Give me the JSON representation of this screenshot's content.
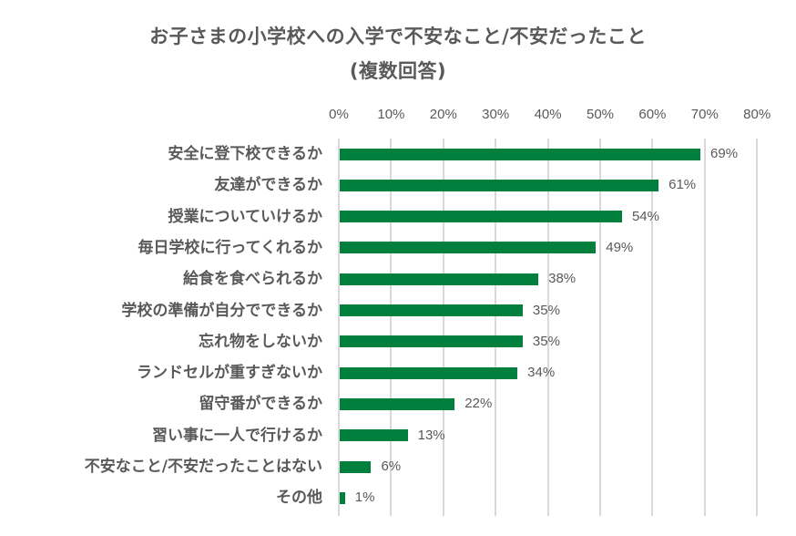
{
  "chart_data": {
    "type": "bar",
    "orientation": "horizontal",
    "title": "お子さまの小学校への入学で不安なこと/不安だったこと",
    "subtitle": "(複数回答)",
    "xlabel": "",
    "ylabel": "",
    "xlim": [
      0,
      80
    ],
    "x_ticks": [
      "0%",
      "10%",
      "20%",
      "30%",
      "40%",
      "50%",
      "60%",
      "70%",
      "80%"
    ],
    "x_axis_position": "top",
    "grid": true,
    "legend": null,
    "bar_color": "#007f3d",
    "categories": [
      "安全に登下校できるか",
      "友達ができるか",
      "授業についていけるか",
      "毎日学校に行ってくれるか",
      "給食を食べられるか",
      "学校の準備が自分でできるか",
      "忘れ物をしないか",
      "ランドセルが重すぎないか",
      "留守番ができるか",
      "習い事に一人で行けるか",
      "不安なこと/不安だったことはない",
      "その他"
    ],
    "values": [
      69,
      61,
      54,
      49,
      38,
      35,
      35,
      34,
      22,
      13,
      6,
      1
    ],
    "value_labels": [
      "69%",
      "61%",
      "54%",
      "49%",
      "38%",
      "35%",
      "35%",
      "34%",
      "22%",
      "13%",
      "6%",
      "1%"
    ]
  }
}
